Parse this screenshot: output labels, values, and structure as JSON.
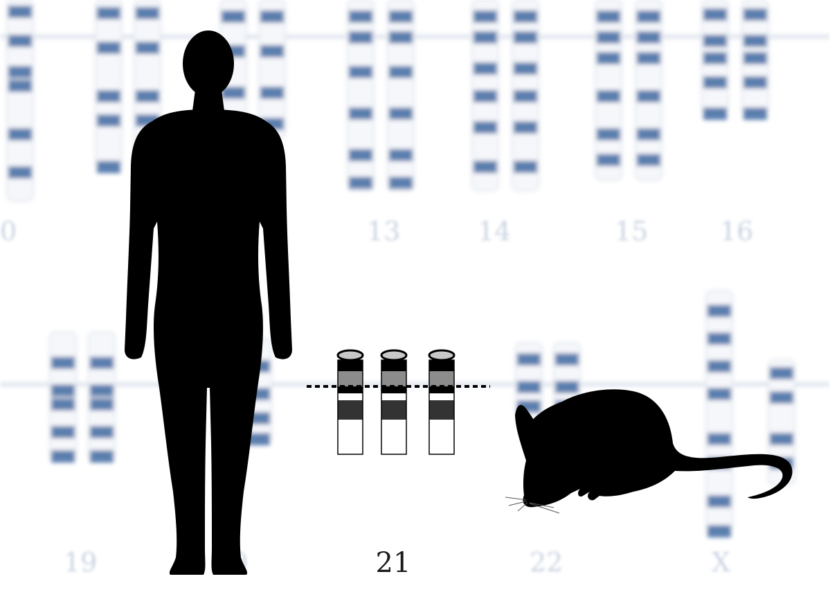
{
  "figure": {
    "center_chromosome_label": "21",
    "background_labels": [
      {
        "id": "10",
        "text": "0"
      },
      {
        "id": "13",
        "text": "13"
      },
      {
        "id": "14",
        "text": "14"
      },
      {
        "id": "15",
        "text": "15"
      },
      {
        "id": "16",
        "text": "16"
      },
      {
        "id": "19",
        "text": "19"
      },
      {
        "id": "20",
        "text": "20"
      },
      {
        "id": "22",
        "text": "22"
      },
      {
        "id": "x",
        "text": "X"
      }
    ],
    "silhouettes": [
      "human-silhouette",
      "mouse-silhouette"
    ],
    "chromosome_copies": 3
  },
  "colors": {
    "karyotype_band": "#3d67a0",
    "silhouette": "#000000",
    "chromosome_dark": "#333333",
    "chromosome_gray": "#8c8c8c",
    "chromosome_light": "#c8c8c8"
  }
}
